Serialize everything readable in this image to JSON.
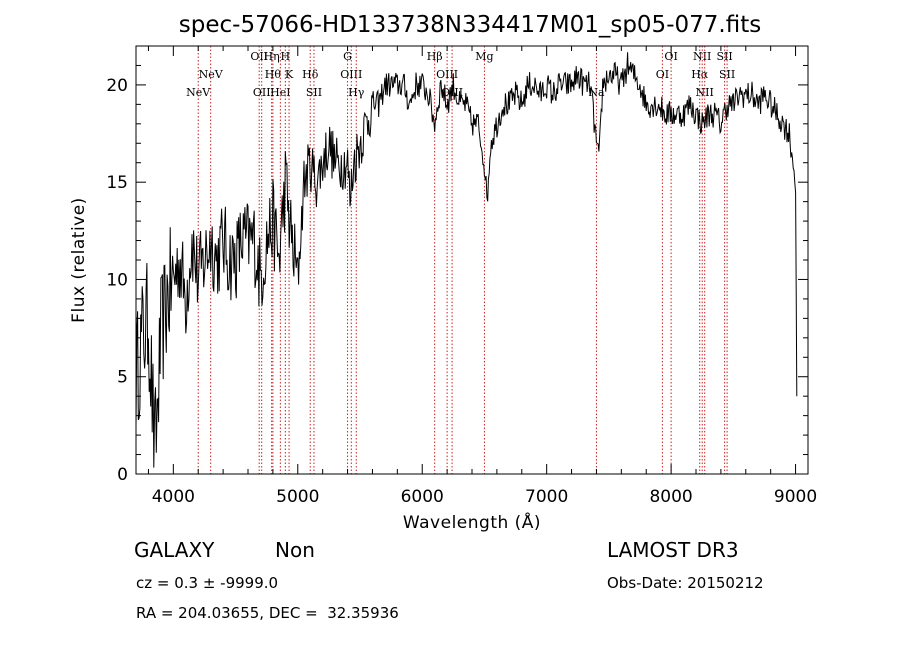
{
  "chart_data": {
    "type": "line",
    "title": "spec-57066-HD133738N334417M01_sp05-077.fits",
    "xlabel": "Wavelength (Å)",
    "ylabel": "Flux (relative)",
    "xlim": [
      3700,
      9100
    ],
    "ylim": [
      0,
      22
    ],
    "xticks": [
      4000,
      5000,
      6000,
      7000,
      8000,
      9000
    ],
    "yticks": [
      0,
      5,
      10,
      15,
      20
    ],
    "grid": false,
    "series": [
      {
        "name": "flux",
        "x": [
          3700,
          3750,
          3800,
          3830,
          3850,
          3870,
          3900,
          3950,
          4000,
          4050,
          4100,
          4150,
          4200,
          4250,
          4300,
          4350,
          4400,
          4450,
          4500,
          4550,
          4600,
          4650,
          4700,
          4750,
          4800,
          4850,
          4900,
          4950,
          5000,
          5050,
          5100,
          5150,
          5200,
          5250,
          5300,
          5350,
          5400,
          5420,
          5450,
          5500,
          5550,
          5600,
          5650,
          5700,
          5750,
          5800,
          5850,
          5900,
          5950,
          6000,
          6050,
          6100,
          6150,
          6200,
          6250,
          6300,
          6350,
          6400,
          6450,
          6500,
          6520,
          6550,
          6600,
          6650,
          6700,
          6750,
          6800,
          6850,
          6900,
          6950,
          7000,
          7050,
          7100,
          7150,
          7200,
          7250,
          7300,
          7350,
          7400,
          7420,
          7450,
          7500,
          7550,
          7600,
          7650,
          7700,
          7750,
          7800,
          7850,
          7900,
          7950,
          8000,
          8050,
          8100,
          8150,
          8200,
          8250,
          8300,
          8350,
          8400,
          8450,
          8500,
          8550,
          8600,
          8650,
          8700,
          8750,
          8800,
          8850,
          8900,
          8950,
          9000,
          9010
        ],
        "values": [
          5,
          7,
          8,
          4,
          1,
          3,
          7,
          9,
          10,
          11,
          9,
          12,
          10,
          11,
          12,
          11,
          12,
          11,
          11,
          12,
          12,
          12,
          10,
          12,
          13,
          11,
          15,
          12,
          10,
          15,
          16,
          15,
          16,
          17,
          16,
          16,
          16,
          14,
          16,
          17,
          18,
          19,
          19,
          20,
          20,
          20,
          20,
          19,
          20,
          20,
          19.5,
          18,
          20,
          19,
          20,
          19,
          19,
          18,
          18,
          16,
          14,
          17,
          18,
          19,
          19,
          19.5,
          19,
          20,
          20,
          19.5,
          20,
          19.5,
          20,
          20,
          20,
          20.5,
          20,
          20,
          17,
          16,
          20,
          20.5,
          20.5,
          20,
          21,
          20.5,
          20,
          19,
          19,
          19,
          18.5,
          18.5,
          18.5,
          18.5,
          19,
          18.5,
          18,
          18.5,
          18.5,
          18,
          19,
          19,
          19.5,
          19.5,
          19.5,
          19,
          19.5,
          19,
          18.5,
          18,
          17.5,
          15,
          4
        ]
      }
    ],
    "line_markers": [
      {
        "wavelength": 4200,
        "label": "NeV",
        "row": 2
      },
      {
        "wavelength": 4300,
        "label": "NeV",
        "row": 1
      },
      {
        "wavelength": 4690,
        "label": "OII",
        "row": 0
      },
      {
        "wavelength": 4710,
        "label": "OII",
        "row": 2
      },
      {
        "wavelength": 4790,
        "label": "Hη",
        "row": 0
      },
      {
        "wavelength": 4800,
        "label": "Hθ",
        "row": 1
      },
      {
        "wavelength": 4860,
        "label": "HeI",
        "row": 2
      },
      {
        "wavelength": 4900,
        "label": "H",
        "row": 0
      },
      {
        "wavelength": 4930,
        "label": "K",
        "row": 1
      },
      {
        "wavelength": 5100,
        "label": "Hδ",
        "row": 1
      },
      {
        "wavelength": 5130,
        "label": "SII",
        "row": 2
      },
      {
        "wavelength": 5400,
        "label": "G",
        "row": 0
      },
      {
        "wavelength": 5430,
        "label": "OIII",
        "row": 1
      },
      {
        "wavelength": 5470,
        "label": "Hγ",
        "row": 2
      },
      {
        "wavelength": 6100,
        "label": "Hβ",
        "row": 0
      },
      {
        "wavelength": 6200,
        "label": "OIII",
        "row": 1
      },
      {
        "wavelength": 6240,
        "label": "OIII",
        "row": 2
      },
      {
        "wavelength": 6500,
        "label": "Mg",
        "row": 0
      },
      {
        "wavelength": 7400,
        "label": "Na",
        "row": 2
      },
      {
        "wavelength": 7930,
        "label": "OI",
        "row": 1
      },
      {
        "wavelength": 8000,
        "label": "OI",
        "row": 0
      },
      {
        "wavelength": 8230,
        "label": "Hα",
        "row": 1
      },
      {
        "wavelength": 8250,
        "label": "NII",
        "row": 0
      },
      {
        "wavelength": 8270,
        "label": "NII",
        "row": 2
      },
      {
        "wavelength": 8430,
        "label": "SII",
        "row": 0
      },
      {
        "wavelength": 8450,
        "label": "SII",
        "row": 1
      }
    ]
  },
  "info": {
    "object_class": "GALAXY",
    "subclass": "Non",
    "survey": "LAMOST DR3",
    "redshift_line": "cz = 0.3 ± -9999.0",
    "obs_date_line": "Obs-Date: 20150212",
    "coords_line": "RA = 204.03655, DEC =  32.35936"
  },
  "colors": {
    "spectrum": "#000000",
    "marker_lines": "#cc2222",
    "axes": "#000000"
  }
}
